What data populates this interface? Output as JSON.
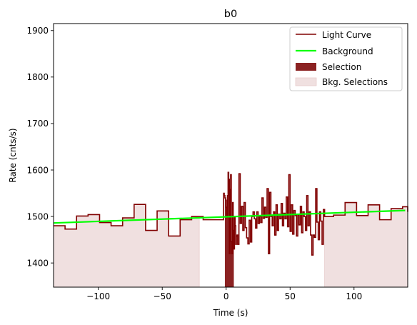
{
  "chart_data": {
    "type": "line",
    "title": "b0",
    "xlabel": "Time (s)",
    "ylabel": "Rate (cnts/s)",
    "xlim": [
      -135,
      142
    ],
    "ylim": [
      1348,
      1915
    ],
    "x_ticks": [
      -100,
      -50,
      0,
      50,
      100
    ],
    "y_ticks": [
      1400,
      1500,
      1600,
      1700,
      1800,
      1900
    ],
    "legend_position": "top-right",
    "legend": [
      "Light Curve",
      "Background",
      "Selection",
      "Bkg. Selections"
    ],
    "colors": {
      "light_curve": "#800000",
      "background": "#00ff00",
      "selection": "#8b2222",
      "bkg_selection": "#f0e0e0"
    },
    "light_curve": {
      "x": [
        -135,
        -126,
        -117,
        -108,
        -99,
        -90,
        -81,
        -72,
        -63,
        -54,
        -45,
        -36,
        -27,
        -18,
        -9,
        -2,
        -1.5,
        -1,
        -0.5,
        0,
        0.5,
        1,
        1.5,
        2,
        2.5,
        3,
        3.5,
        4,
        4.5,
        5,
        5.5,
        6,
        6.5,
        7,
        7.5,
        8,
        8.5,
        9,
        10,
        11,
        12,
        13,
        14,
        15,
        16,
        17,
        18,
        19,
        20,
        21,
        22,
        23,
        24,
        25,
        26,
        27,
        28,
        29,
        30,
        31,
        32,
        33,
        34,
        35,
        36,
        37,
        38,
        39,
        40,
        41,
        42,
        43,
        44,
        45,
        46,
        47,
        48,
        49,
        50,
        51,
        52,
        53,
        54,
        55,
        56,
        57,
        58,
        59,
        60,
        61,
        62,
        63,
        64,
        65,
        66,
        67,
        68,
        69,
        70,
        71,
        72,
        73,
        74,
        75,
        76,
        77,
        84,
        93,
        102,
        111,
        120,
        129,
        138,
        142
      ],
      "y": [
        1480,
        1473,
        1501,
        1504,
        1487,
        1480,
        1497,
        1526,
        1470,
        1512,
        1458,
        1493,
        1500,
        1493,
        1493,
        1550,
        1545,
        1540,
        1535,
        1520,
        1498,
        1545,
        1595,
        1580,
        1420,
        1558,
        1590,
        1446,
        1420,
        1530,
        1470,
        1430,
        1500,
        1480,
        1440,
        1458,
        1460,
        1440,
        1592,
        1485,
        1522,
        1470,
        1530,
        1476,
        1454,
        1441,
        1492,
        1445,
        1500,
        1510,
        1495,
        1475,
        1510,
        1485,
        1500,
        1487,
        1540,
        1496,
        1520,
        1498,
        1560,
        1420,
        1552,
        1500,
        1480,
        1510,
        1460,
        1525,
        1470,
        1505,
        1495,
        1528,
        1480,
        1507,
        1495,
        1542,
        1478,
        1590,
        1468,
        1525,
        1462,
        1513,
        1502,
        1458,
        1503,
        1482,
        1522,
        1465,
        1510,
        1500,
        1470,
        1545,
        1480,
        1510,
        1460,
        1417,
        1460,
        1455,
        1560,
        1488,
        1450,
        1510,
        1490,
        1440,
        1515,
        1500,
        1503,
        1530,
        1502,
        1525,
        1493,
        1517,
        1521,
        1510
      ]
    },
    "background": {
      "x": [
        -135,
        140
      ],
      "y": [
        1486,
        1513
      ]
    },
    "selection": [
      -1,
      6
    ],
    "bkg_selections": [
      [
        -135,
        -21
      ],
      [
        77,
        142
      ]
    ]
  }
}
